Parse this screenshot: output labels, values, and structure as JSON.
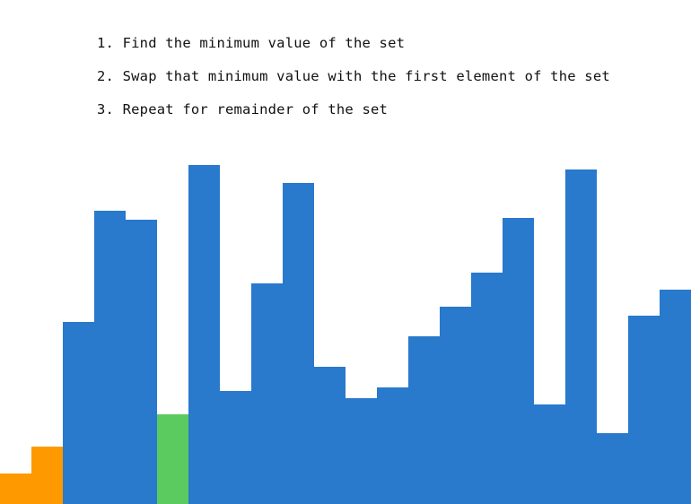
{
  "instructions": {
    "step_1": "1. Find the minimum value of the set",
    "step_2": "2. Swap that minimum value with the first element of the set",
    "step_3": "3. Repeat for remainder of the set"
  },
  "colors": {
    "sorted": "#ff9900",
    "current_minimum": "#5ccb5f",
    "unsorted": "#2979cc"
  },
  "visualization": {
    "bars": [
      {
        "value": 34,
        "state": "sorted"
      },
      {
        "value": 64,
        "state": "sorted"
      },
      {
        "value": 203,
        "state": "unsorted"
      },
      {
        "value": 327,
        "state": "unsorted"
      },
      {
        "value": 317,
        "state": "unsorted"
      },
      {
        "value": 100,
        "state": "current_minimum"
      },
      {
        "value": 378,
        "state": "unsorted"
      },
      {
        "value": 126,
        "state": "unsorted"
      },
      {
        "value": 246,
        "state": "unsorted"
      },
      {
        "value": 358,
        "state": "unsorted"
      },
      {
        "value": 153,
        "state": "unsorted"
      },
      {
        "value": 118,
        "state": "unsorted"
      },
      {
        "value": 130,
        "state": "unsorted"
      },
      {
        "value": 187,
        "state": "unsorted"
      },
      {
        "value": 220,
        "state": "unsorted"
      },
      {
        "value": 258,
        "state": "unsorted"
      },
      {
        "value": 319,
        "state": "unsorted"
      },
      {
        "value": 111,
        "state": "unsorted"
      },
      {
        "value": 373,
        "state": "unsorted"
      },
      {
        "value": 79,
        "state": "unsorted"
      },
      {
        "value": 210,
        "state": "unsorted"
      },
      {
        "value": 239,
        "state": "unsorted"
      }
    ]
  }
}
